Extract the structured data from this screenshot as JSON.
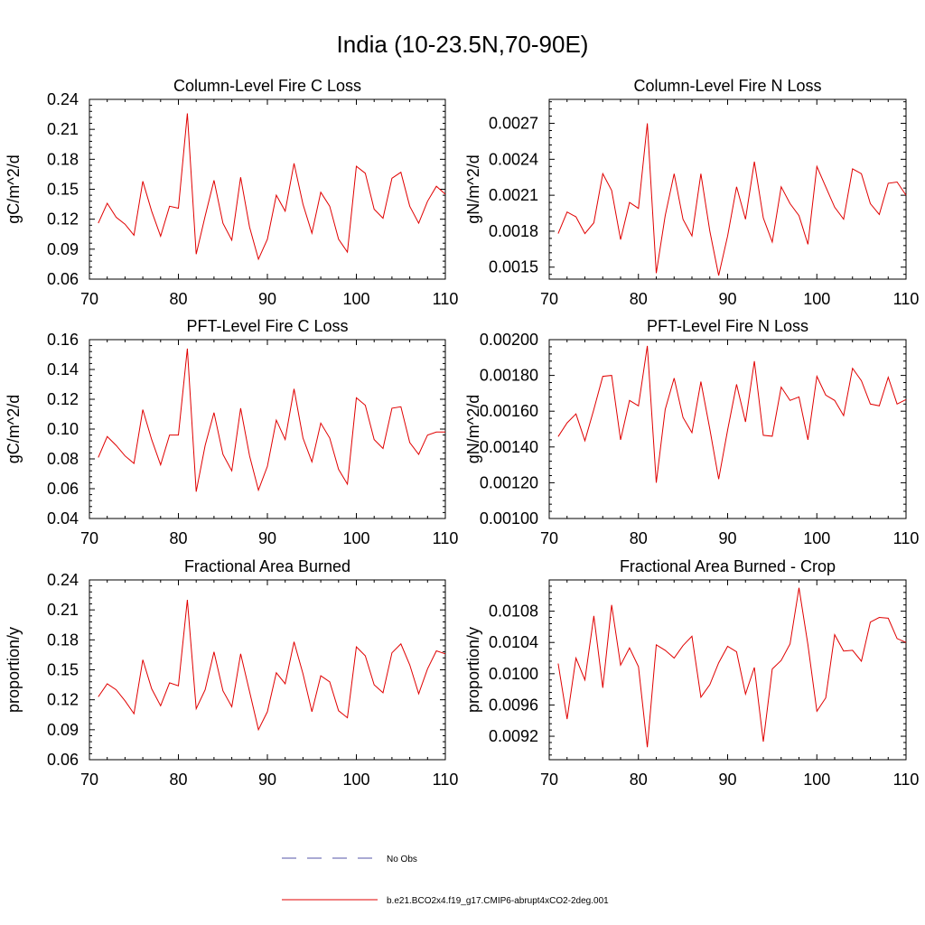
{
  "title": "India (10-23.5N,70-90E)",
  "legend": {
    "entries": [
      {
        "label": "No Obs",
        "color": "#5555aa",
        "dash": true
      },
      {
        "label": "b.e21.BCO2x4.f19_g17.CMIP6-abrupt4xCO2-2deg.001",
        "color": "#e00000",
        "dash": false
      }
    ]
  },
  "chart_data": [
    {
      "type": "line",
      "title": "Column-Level Fire C Loss",
      "ylabel": "gC/m^2/d",
      "xlim": [
        70,
        110
      ],
      "ylim": [
        0.06,
        0.24
      ],
      "xticks": [
        70,
        80,
        90,
        100,
        110
      ],
      "yticks": [
        0.06,
        0.09,
        0.12,
        0.15,
        0.18,
        0.21,
        0.24
      ],
      "ytick_labels": [
        "0.06",
        "0.09",
        "0.12",
        "0.15",
        "0.18",
        "0.21",
        "0.24"
      ],
      "series": [
        {
          "color": "#e00000",
          "x": [
            71,
            72,
            73,
            74,
            75,
            76,
            77,
            78,
            79,
            80,
            81,
            82,
            83,
            84,
            85,
            86,
            87,
            88,
            89,
            90,
            91,
            92,
            93,
            94,
            95,
            96,
            97,
            98,
            99,
            100,
            101,
            102,
            103,
            104,
            105,
            106,
            107,
            108,
            109,
            110
          ],
          "values": [
            0.116,
            0.136,
            0.122,
            0.115,
            0.104,
            0.158,
            0.128,
            0.103,
            0.133,
            0.131,
            0.226,
            0.085,
            0.123,
            0.159,
            0.116,
            0.099,
            0.162,
            0.112,
            0.08,
            0.1,
            0.144,
            0.128,
            0.176,
            0.135,
            0.106,
            0.147,
            0.133,
            0.1,
            0.087,
            0.173,
            0.166,
            0.13,
            0.121,
            0.161,
            0.167,
            0.133,
            0.116,
            0.138,
            0.153,
            0.145
          ]
        }
      ]
    },
    {
      "type": "line",
      "title": "Column-Level Fire N Loss",
      "ylabel": "gN/m^2/d",
      "xlim": [
        70,
        110
      ],
      "ylim": [
        0.0014,
        0.0029
      ],
      "xticks": [
        70,
        80,
        90,
        100,
        110
      ],
      "yticks": [
        0.0015,
        0.0018,
        0.0021,
        0.0024,
        0.0027
      ],
      "ytick_labels": [
        "0.0015",
        "0.0018",
        "0.0021",
        "0.0024",
        "0.0027"
      ],
      "series": [
        {
          "color": "#e00000",
          "x": [
            71,
            72,
            73,
            74,
            75,
            76,
            77,
            78,
            79,
            80,
            81,
            82,
            83,
            84,
            85,
            86,
            87,
            88,
            89,
            90,
            91,
            92,
            93,
            94,
            95,
            96,
            97,
            98,
            99,
            100,
            101,
            102,
            103,
            104,
            105,
            106,
            107,
            108,
            109,
            110
          ],
          "values": [
            0.00178,
            0.00196,
            0.00192,
            0.00178,
            0.00187,
            0.00228,
            0.00214,
            0.00173,
            0.00204,
            0.00199,
            0.0027,
            0.00145,
            0.00193,
            0.00228,
            0.0019,
            0.00176,
            0.00228,
            0.0018,
            0.00143,
            0.00176,
            0.00217,
            0.0019,
            0.00238,
            0.00191,
            0.00171,
            0.00217,
            0.00203,
            0.00193,
            0.00169,
            0.00234,
            0.00217,
            0.002,
            0.0019,
            0.00232,
            0.00228,
            0.00203,
            0.00194,
            0.0022,
            0.00221,
            0.0021
          ]
        }
      ]
    },
    {
      "type": "line",
      "title": "PFT-Level Fire C Loss",
      "ylabel": "gC/m^2/d",
      "xlim": [
        70,
        110
      ],
      "ylim": [
        0.04,
        0.16
      ],
      "xticks": [
        70,
        80,
        90,
        100,
        110
      ],
      "yticks": [
        0.04,
        0.06,
        0.08,
        0.1,
        0.12,
        0.14,
        0.16
      ],
      "ytick_labels": [
        "0.04",
        "0.06",
        "0.08",
        "0.10",
        "0.12",
        "0.14",
        "0.16"
      ],
      "series": [
        {
          "color": "#e00000",
          "x": [
            71,
            72,
            73,
            74,
            75,
            76,
            77,
            78,
            79,
            80,
            81,
            82,
            83,
            84,
            85,
            86,
            87,
            88,
            89,
            90,
            91,
            92,
            93,
            94,
            95,
            96,
            97,
            98,
            99,
            100,
            101,
            102,
            103,
            104,
            105,
            106,
            107,
            108,
            109,
            110
          ],
          "values": [
            0.081,
            0.095,
            0.089,
            0.082,
            0.077,
            0.113,
            0.093,
            0.076,
            0.096,
            0.096,
            0.154,
            0.058,
            0.089,
            0.111,
            0.083,
            0.072,
            0.114,
            0.082,
            0.059,
            0.075,
            0.106,
            0.093,
            0.127,
            0.094,
            0.078,
            0.104,
            0.094,
            0.073,
            0.063,
            0.121,
            0.116,
            0.093,
            0.087,
            0.114,
            0.115,
            0.091,
            0.083,
            0.096,
            0.098,
            0.098
          ]
        }
      ]
    },
    {
      "type": "line",
      "title": "PFT-Level Fire N Loss",
      "ylabel": "gN/m^2/d",
      "xlim": [
        70,
        110
      ],
      "ylim": [
        0.001,
        0.002
      ],
      "xticks": [
        70,
        80,
        90,
        100,
        110
      ],
      "yticks": [
        0.001,
        0.0012,
        0.0014,
        0.0016,
        0.0018,
        0.002
      ],
      "ytick_labels": [
        "0.00100",
        "0.00120",
        "0.00140",
        "0.00160",
        "0.00180",
        "0.00200"
      ],
      "series": [
        {
          "color": "#e00000",
          "x": [
            71,
            72,
            73,
            74,
            75,
            76,
            77,
            78,
            79,
            80,
            81,
            82,
            83,
            84,
            85,
            86,
            87,
            88,
            89,
            90,
            91,
            92,
            93,
            94,
            95,
            96,
            97,
            98,
            99,
            100,
            101,
            102,
            103,
            104,
            105,
            106,
            107,
            108,
            109,
            110
          ],
          "values": [
            0.001458,
            0.001535,
            0.001585,
            0.001435,
            0.00161,
            0.001795,
            0.0018,
            0.00144,
            0.00166,
            0.00163,
            0.001965,
            0.0012,
            0.00161,
            0.001785,
            0.001565,
            0.00148,
            0.001765,
            0.0015,
            0.00122,
            0.001495,
            0.00175,
            0.00154,
            0.00188,
            0.001465,
            0.00146,
            0.001735,
            0.00166,
            0.00168,
            0.00144,
            0.001795,
            0.00169,
            0.00166,
            0.001575,
            0.00184,
            0.00177,
            0.00164,
            0.00163,
            0.00179,
            0.00164,
            0.001665
          ]
        }
      ]
    },
    {
      "type": "line",
      "title": "Fractional Area Burned",
      "ylabel": "proportion/y",
      "xlim": [
        70,
        110
      ],
      "ylim": [
        0.06,
        0.24
      ],
      "xticks": [
        70,
        80,
        90,
        100,
        110
      ],
      "yticks": [
        0.06,
        0.09,
        0.12,
        0.15,
        0.18,
        0.21,
        0.24
      ],
      "ytick_labels": [
        "0.06",
        "0.09",
        "0.12",
        "0.15",
        "0.18",
        "0.21",
        "0.24"
      ],
      "series": [
        {
          "color": "#e00000",
          "x": [
            71,
            72,
            73,
            74,
            75,
            76,
            77,
            78,
            79,
            80,
            81,
            82,
            83,
            84,
            85,
            86,
            87,
            88,
            89,
            90,
            91,
            92,
            93,
            94,
            95,
            96,
            97,
            98,
            99,
            100,
            101,
            102,
            103,
            104,
            105,
            106,
            107,
            108,
            109,
            110
          ],
          "values": [
            0.123,
            0.136,
            0.13,
            0.119,
            0.106,
            0.16,
            0.131,
            0.114,
            0.137,
            0.134,
            0.22,
            0.111,
            0.13,
            0.168,
            0.129,
            0.113,
            0.166,
            0.128,
            0.09,
            0.108,
            0.147,
            0.136,
            0.178,
            0.146,
            0.108,
            0.144,
            0.138,
            0.109,
            0.102,
            0.173,
            0.164,
            0.135,
            0.127,
            0.167,
            0.176,
            0.155,
            0.126,
            0.151,
            0.169,
            0.166
          ]
        }
      ]
    },
    {
      "type": "line",
      "title": "Fractional Area Burned - Crop",
      "ylabel": "proportion/y",
      "xlim": [
        70,
        110
      ],
      "ylim": [
        0.0089,
        0.0112
      ],
      "xticks": [
        70,
        80,
        90,
        100,
        110
      ],
      "yticks": [
        0.0092,
        0.0096,
        0.01,
        0.0104,
        0.0108
      ],
      "ytick_labels": [
        "0.0092",
        "0.0096",
        "0.0100",
        "0.0104",
        "0.0108"
      ],
      "series": [
        {
          "color": "#e00000",
          "x": [
            71,
            72,
            73,
            74,
            75,
            76,
            77,
            78,
            79,
            80,
            81,
            82,
            83,
            84,
            85,
            86,
            87,
            88,
            89,
            90,
            91,
            92,
            93,
            94,
            95,
            96,
            97,
            98,
            99,
            100,
            101,
            102,
            103,
            104,
            105,
            106,
            107,
            108,
            109,
            110
          ],
          "values": [
            0.01013,
            0.00942,
            0.0102,
            0.00992,
            0.01074,
            0.00982,
            0.01088,
            0.01011,
            0.01033,
            0.01009,
            0.00906,
            0.01037,
            0.0103,
            0.0102,
            0.01036,
            0.01048,
            0.0097,
            0.00986,
            0.01014,
            0.01035,
            0.01028,
            0.00974,
            0.01008,
            0.00913,
            0.01006,
            0.01017,
            0.01038,
            0.0111,
            0.01037,
            0.00952,
            0.00969,
            0.0105,
            0.01029,
            0.0103,
            0.01016,
            0.01066,
            0.01072,
            0.01071,
            0.01045,
            0.0104
          ]
        }
      ]
    }
  ]
}
